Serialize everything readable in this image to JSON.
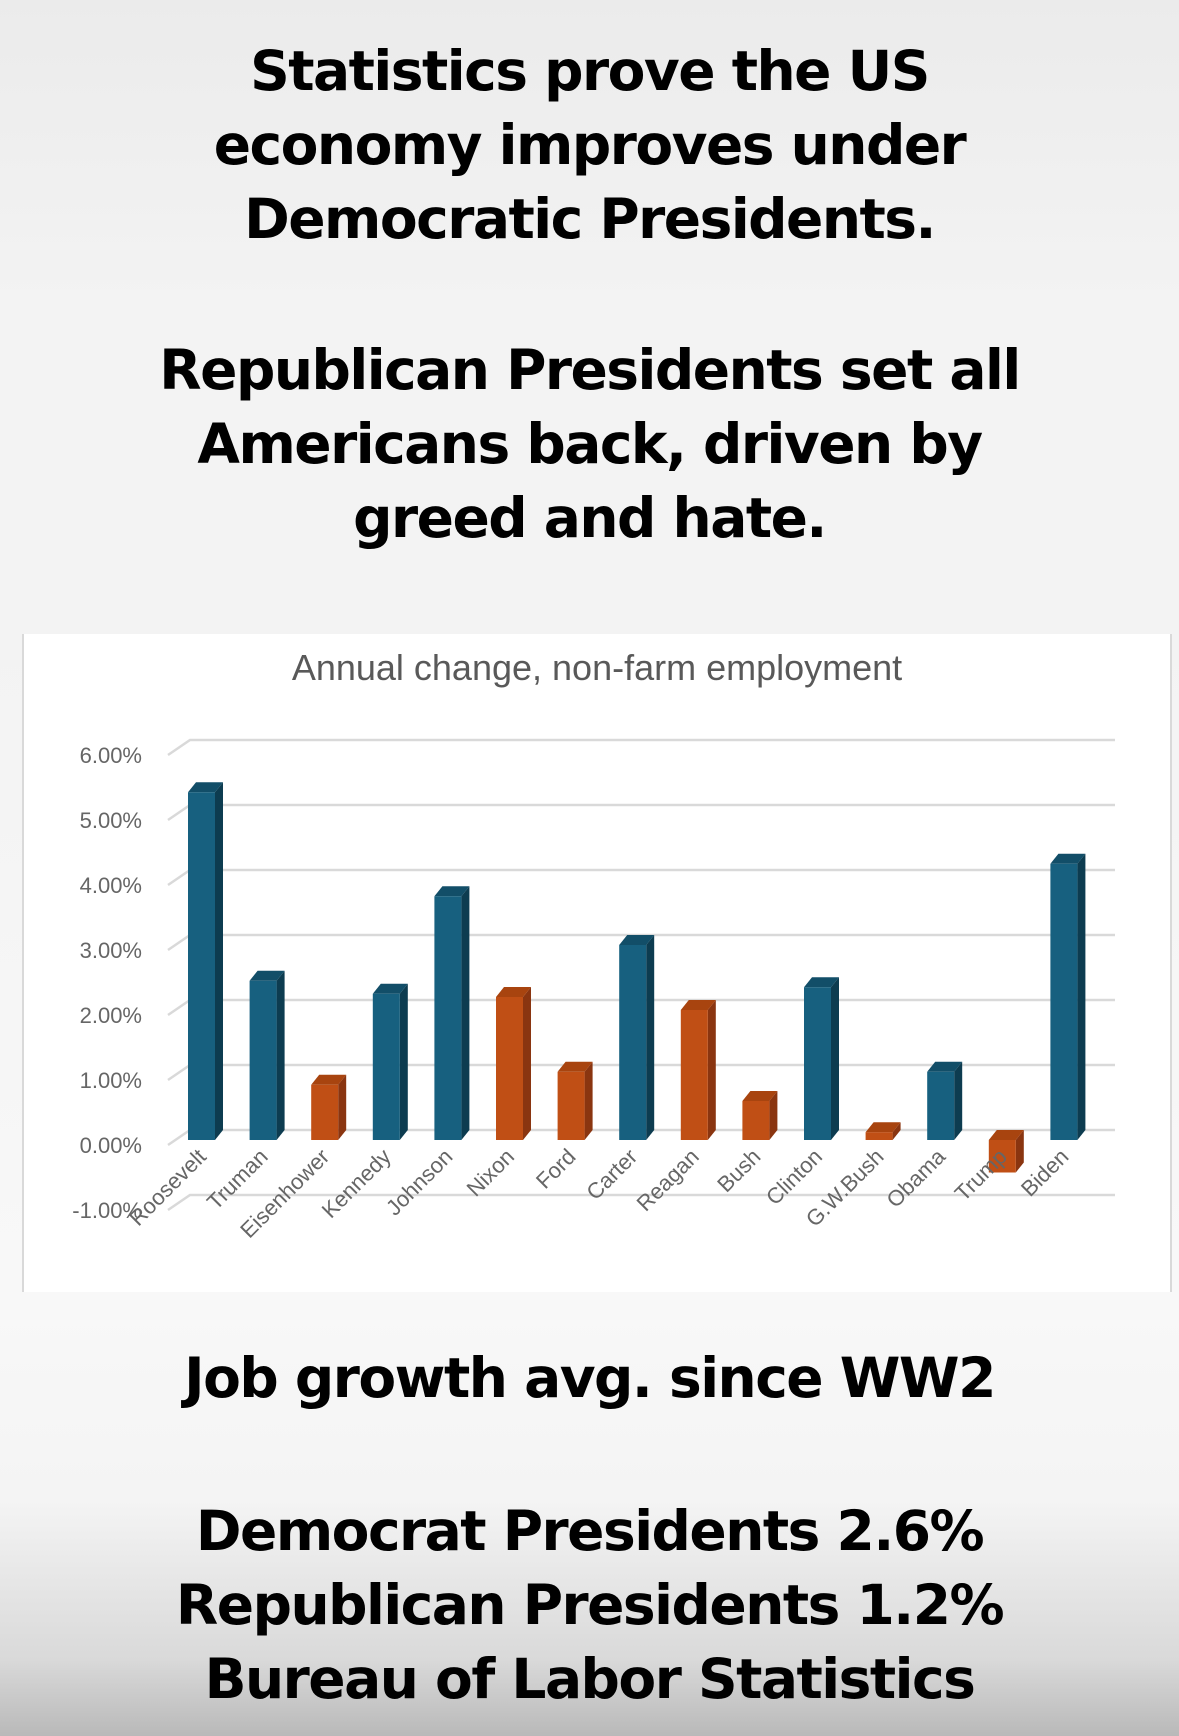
{
  "header": {
    "lines": [
      "Statistics prove the US",
      "economy improves under",
      "Democratic Presidents.",
      "Republican Presidents set all",
      "Americans back, driven by",
      "greed and hate."
    ]
  },
  "footer": {
    "heading": "Job growth avg. since WW2",
    "lines": [
      "Democrat Presidents 2.6%",
      "Republican Presidents 1.2%",
      "Bureau of Labor Statistics"
    ]
  },
  "colors": {
    "democrat": "#17607f",
    "democrat_side": "#0d3c50",
    "republican": "#c04f15",
    "republican_side": "#8a3510"
  },
  "chart_data": {
    "type": "bar",
    "title": "Annual change, non-farm employment",
    "xlabel": "",
    "ylabel": "",
    "ylim": [
      -1,
      6
    ],
    "y_ticks": [
      6,
      5,
      4,
      3,
      2,
      1,
      0,
      -1
    ],
    "y_tick_labels": [
      "6.00%",
      "5.00%",
      "4.00%",
      "3.00%",
      "2.00%",
      "1.00%",
      "0.00%",
      "-1.00%"
    ],
    "grid": true,
    "style": "3d-column",
    "categories": [
      "Roosevelt",
      "Truman",
      "Eisenhower",
      "Kennedy",
      "Johnson",
      "Nixon",
      "Ford",
      "Carter",
      "Reagan",
      "Bush",
      "Clinton",
      "G.W.Bush",
      "Obama",
      "Trump",
      "Biden"
    ],
    "values": [
      5.35,
      2.45,
      0.85,
      2.25,
      3.75,
      2.2,
      1.05,
      3.0,
      2.0,
      0.6,
      2.35,
      0.12,
      1.05,
      -0.5,
      4.25
    ],
    "party": [
      "D",
      "D",
      "R",
      "D",
      "D",
      "R",
      "R",
      "D",
      "R",
      "R",
      "D",
      "R",
      "D",
      "R",
      "D"
    ],
    "series_legend": [
      {
        "name": "Democrat",
        "color": "#17607f"
      },
      {
        "name": "Republican",
        "color": "#c04f15"
      }
    ]
  }
}
